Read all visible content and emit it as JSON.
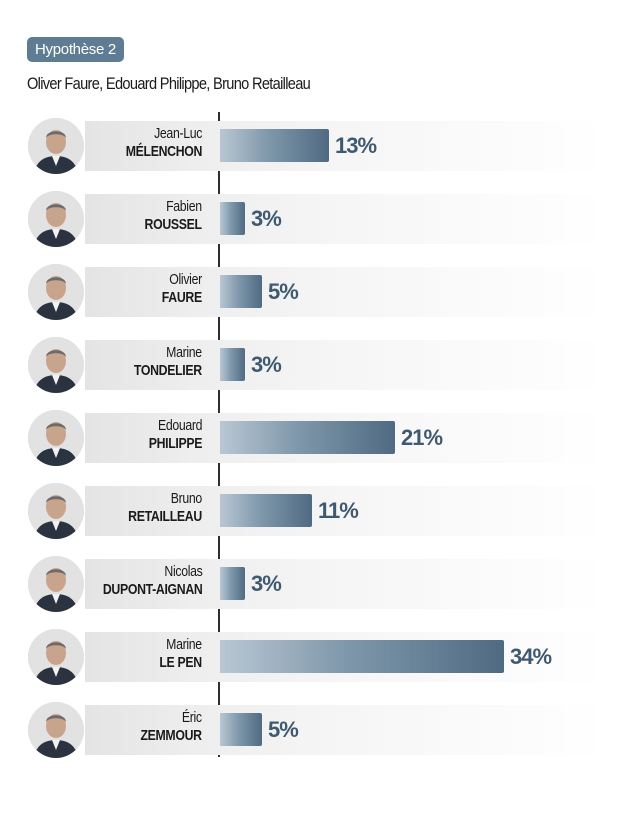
{
  "header": {
    "badge": "Hypothèse 2",
    "subtitle": "Oliver Faure, Edouard Philippe, Bruno Retailleau"
  },
  "colors": {
    "badge": "#5e7c93",
    "bar_start": "#b9c7d3",
    "bar_end": "#4f6a82",
    "label": "#3f5a70"
  },
  "chart_data": {
    "type": "bar",
    "orientation": "horizontal",
    "unit": "%",
    "grid": false,
    "xlim": [
      0,
      34
    ],
    "categories": [
      "Jean-Luc MÉLENCHON",
      "Fabien ROUSSEL",
      "Olivier FAURE",
      "Marine TONDELIER",
      "Edouard PHILIPPE",
      "Bruno RETAILLEAU",
      "Nicolas DUPONT-AIGNAN",
      "Marine LE PEN",
      "Éric ZEMMOUR"
    ],
    "values": [
      13,
      3,
      5,
      3,
      21,
      11,
      3,
      34,
      5
    ],
    "candidates": [
      {
        "first": "Jean-Luc",
        "last": "MÉLENCHON",
        "value": 13,
        "label": "13%",
        "avatar": "candidate-photo"
      },
      {
        "first": "Fabien",
        "last": "ROUSSEL",
        "value": 3,
        "label": "3%",
        "avatar": "candidate-photo"
      },
      {
        "first": "Olivier",
        "last": "FAURE",
        "value": 5,
        "label": "5%",
        "avatar": "candidate-photo"
      },
      {
        "first": "Marine",
        "last": "TONDELIER",
        "value": 3,
        "label": "3%",
        "avatar": "candidate-photo"
      },
      {
        "first": "Edouard",
        "last": "PHILIPPE",
        "value": 21,
        "label": "21%",
        "avatar": "candidate-photo"
      },
      {
        "first": "Bruno",
        "last": "RETAILLEAU",
        "value": 11,
        "label": "11%",
        "avatar": "candidate-photo"
      },
      {
        "first": "Nicolas",
        "last": "DUPONT-AIGNAN",
        "value": 3,
        "label": "3%",
        "avatar": "candidate-photo"
      },
      {
        "first": "Marine",
        "last": "LE PEN",
        "value": 34,
        "label": "34%",
        "avatar": "candidate-photo"
      },
      {
        "first": "Éric",
        "last": "ZEMMOUR",
        "value": 5,
        "label": "5%",
        "avatar": "candidate-photo"
      }
    ]
  }
}
